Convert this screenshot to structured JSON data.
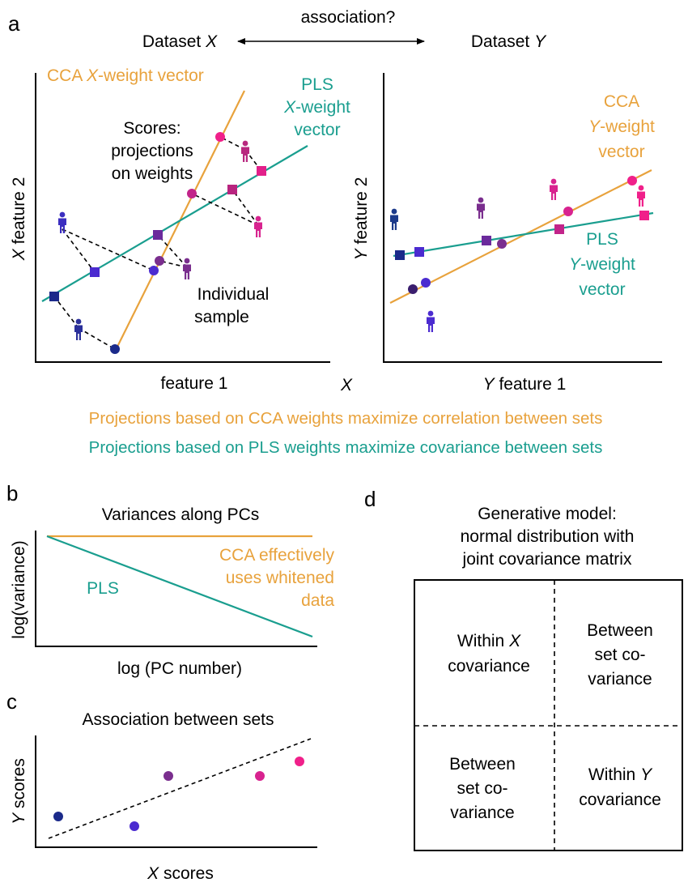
{
  "colors": {
    "cca": "#e8a23c",
    "pls": "#1a9e8f",
    "navy": "#1b2a8a",
    "indigo": "#4b2bd0",
    "purple": "#7a2e8e",
    "magenta": "#c9238f",
    "pink": "#f0208a"
  },
  "panel_a": {
    "letter": "a",
    "association": "association?",
    "dataset_prefix": "Dataset",
    "x_var": "X",
    "y_var": "Y",
    "cca_prefix": "CCA",
    "cca_x_suffix": "-weight vector",
    "pls_label": "PLS",
    "pls_x_line2_suffix": "-weight",
    "vector_word": "vector",
    "scores_lines": [
      "Scores:",
      "projections",
      "on weights"
    ],
    "individual_lines": [
      "Individual",
      "sample"
    ],
    "feature_word": "feature",
    "feature_2": "feature 2",
    "feature_1": "feature 1",
    "cca_y_line2_suffix": "-weight",
    "pls_y_line2_suffix": "-weight",
    "cca_caption": "Projections based on CCA weights maximize correlation between sets",
    "pls_caption": "Projections based on PLS weights maximize covariance between sets"
  },
  "panel_b": {
    "letter": "b",
    "title": "Variances along PCs",
    "ylabel": "log(variance)",
    "xlabel": "log (PC number)",
    "pls_label": "PLS",
    "cca_lines": [
      "CCA effectively",
      "uses whitened",
      "data"
    ]
  },
  "panel_c": {
    "letter": "c",
    "title": "Association between sets",
    "ylabel_suffix": "scores",
    "xlabel_suffix": "scores"
  },
  "panel_d": {
    "letter": "d",
    "title_lines": [
      "Generative model:",
      "normal distribution with",
      "joint covariance matrix"
    ],
    "within_x_prefix": "Within",
    "within_x_line2": "covariance",
    "between_lines": [
      "Between",
      "set co-",
      "variance"
    ],
    "within_y_prefix": "Within",
    "within_y_line2": "covariance"
  }
}
